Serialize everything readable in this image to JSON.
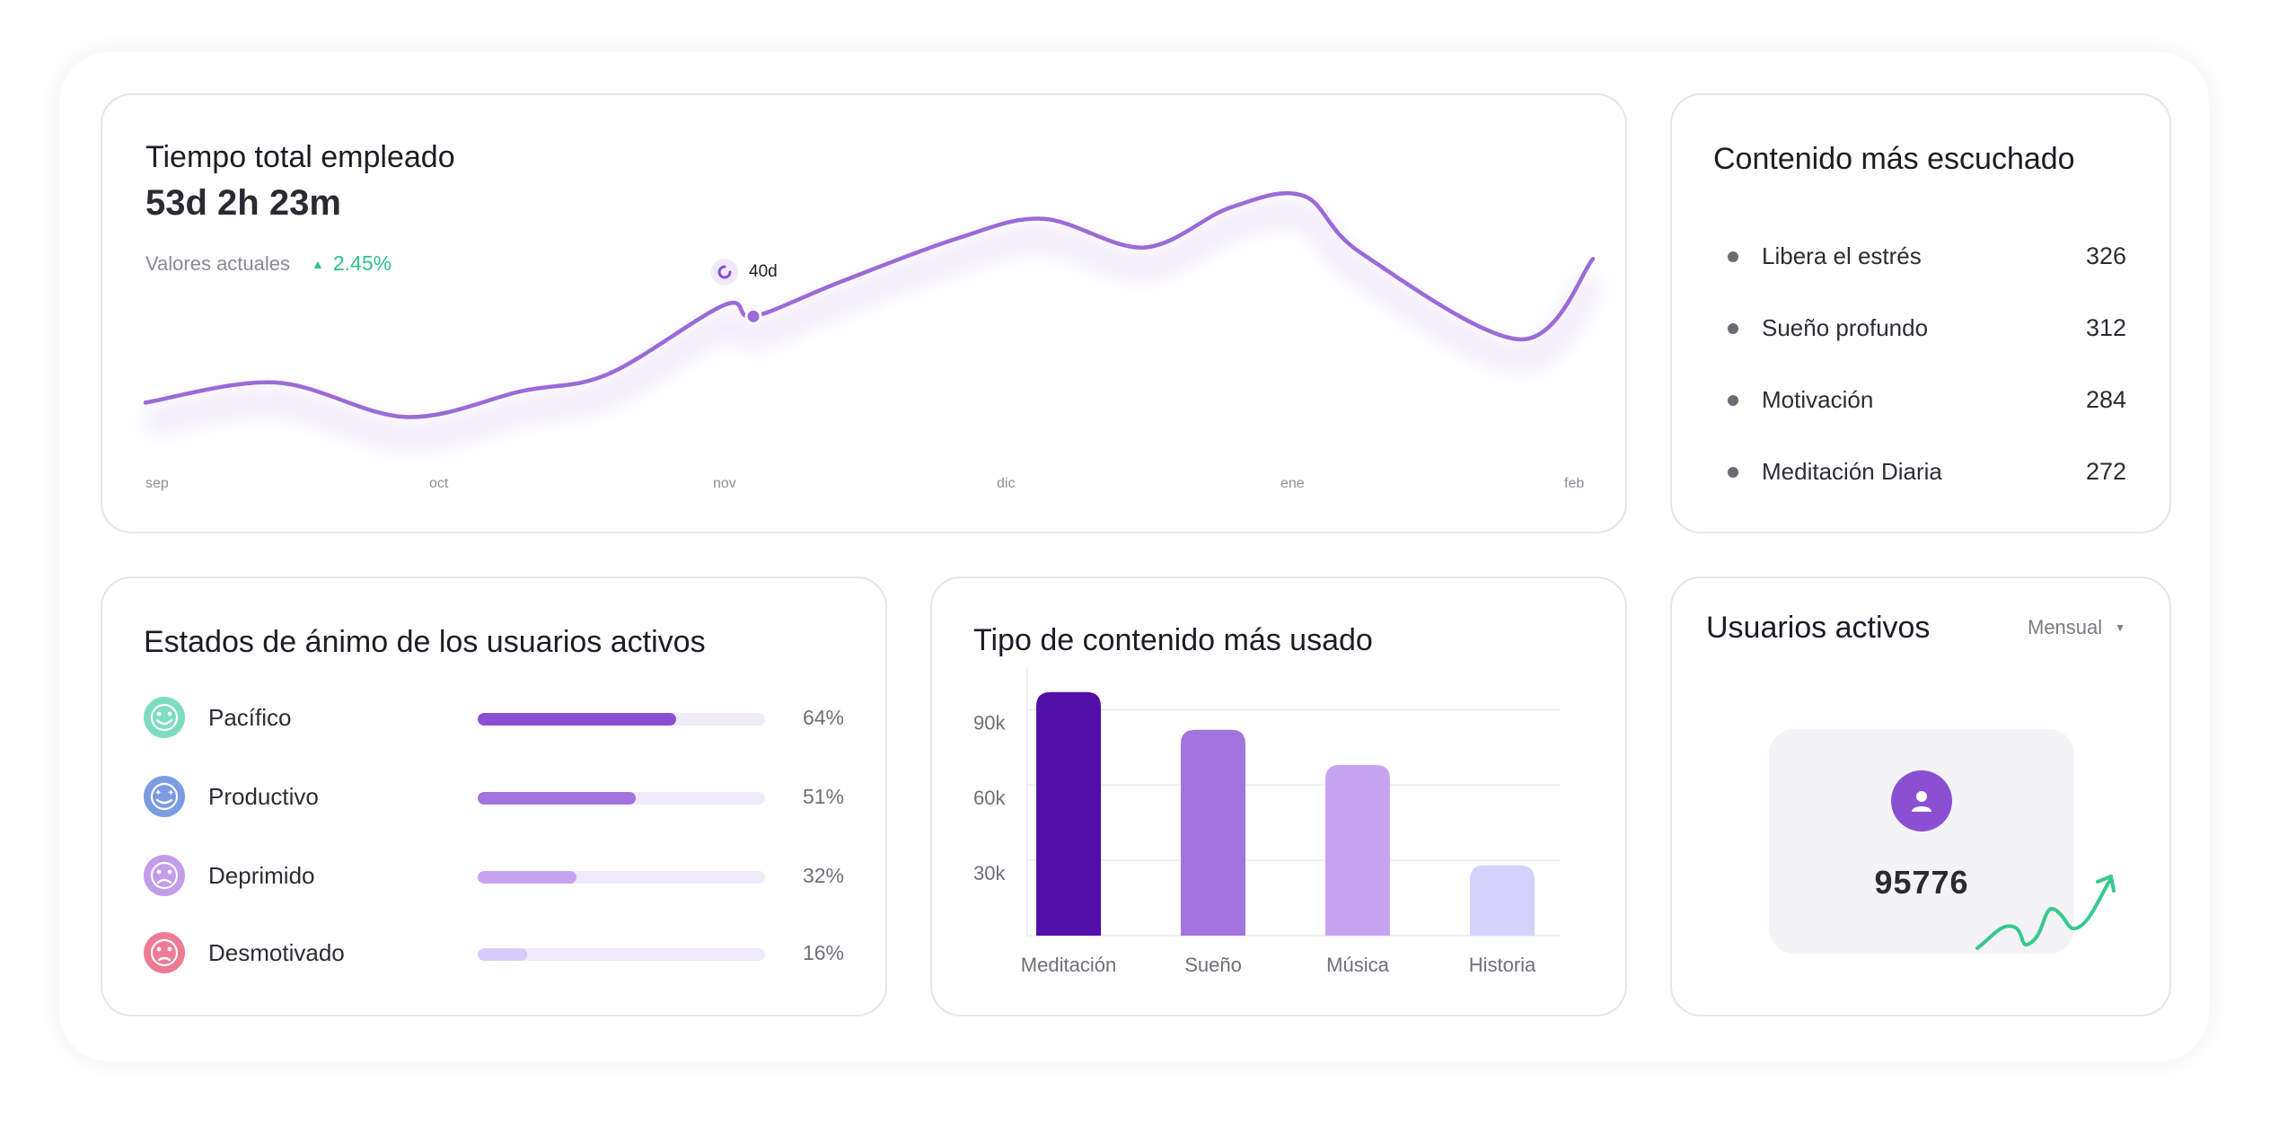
{
  "time_card": {
    "title": "Tiempo total empleado",
    "total": "53d 2h 23m",
    "current_label": "Valores actuales",
    "change": "2.45%",
    "tooltip": "40d",
    "months": [
      "sep",
      "oct",
      "nov",
      "dic",
      "ene",
      "feb"
    ]
  },
  "top_content": {
    "title": "Contenido más escuchado",
    "items": [
      {
        "label": "Libera el estrés",
        "value": "326"
      },
      {
        "label": "Sueño profundo",
        "value": "312"
      },
      {
        "label": "Motivación",
        "value": "284"
      },
      {
        "label": "Meditación Diaria",
        "value": "272"
      }
    ]
  },
  "moods": {
    "title": "Estados de ánimo de los usuarios activos",
    "items": [
      {
        "label": "Pacífico",
        "pct": "64%",
        "value": 64,
        "color": "#8a4fd3",
        "icon_bg": "#7fdcc0",
        "icon": "happy-face-icon"
      },
      {
        "label": "Productivo",
        "pct": "51%",
        "value": 51,
        "color": "#a374de",
        "icon_bg": "#7b9be3",
        "icon": "star-eyes-face-icon"
      },
      {
        "label": "Deprimido",
        "pct": "32%",
        "value": 32,
        "color": "#c8a4f0",
        "icon_bg": "#c39cec",
        "icon": "sad-face-icon"
      },
      {
        "label": "Desmotivado",
        "pct": "16%",
        "value": 16,
        "color": "#d5ccfb",
        "icon_bg": "#ee7a94",
        "icon": "unhappy-face-icon"
      }
    ]
  },
  "content_type": {
    "title": "Tipo de contenido más usado"
  },
  "users": {
    "title": "Usuarios activos",
    "period": "Mensual",
    "count": "95776"
  },
  "chart_data": [
    {
      "type": "line",
      "title": "Tiempo total empleado",
      "x": [
        "sep",
        "oct",
        "nov",
        "dic",
        "ene",
        "feb"
      ],
      "ylim": [
        0,
        100
      ],
      "points": [
        [
          0,
          18
        ],
        [
          0.45,
          25
        ],
        [
          0.9,
          13
        ],
        [
          1.3,
          22
        ],
        [
          1.6,
          28
        ],
        [
          2.0,
          52
        ],
        [
          2.1,
          48
        ],
        [
          2.4,
          60
        ],
        [
          2.8,
          75
        ],
        [
          3.1,
          82
        ],
        [
          3.45,
          72
        ],
        [
          3.75,
          86
        ],
        [
          4.0,
          90
        ],
        [
          4.2,
          70
        ],
        [
          4.75,
          40
        ],
        [
          5.0,
          68
        ]
      ],
      "highlight": {
        "x": 2.1,
        "label": "40d"
      }
    },
    {
      "type": "bar",
      "title": "Tipo de contenido más usado",
      "categories": [
        "Meditación",
        "Sueño",
        "Música",
        "Historia"
      ],
      "values": [
        97000,
        82000,
        68000,
        28000
      ],
      "colors": [
        "#5310a8",
        "#a374de",
        "#c8a4f0",
        "#d5d1fc"
      ],
      "yticks": [
        30000,
        60000,
        90000
      ],
      "ytick_labels": [
        "30k",
        "60k",
        "90k"
      ],
      "ylim": [
        0,
        103000
      ]
    }
  ]
}
